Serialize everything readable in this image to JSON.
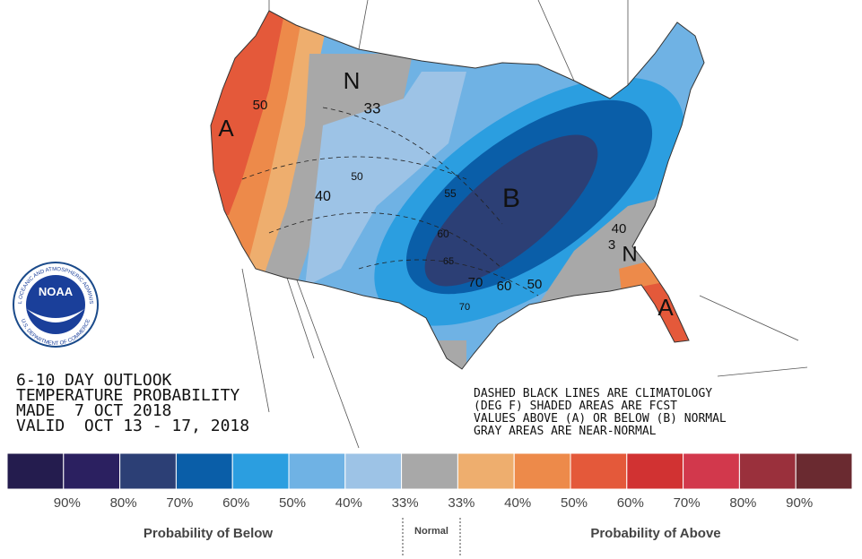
{
  "outlook": {
    "lines": [
      "6-10 DAY OUTLOOK",
      "TEMPERATURE PROBABILITY",
      "MADE  7 OCT 2018",
      "VALID  OCT 13 - 17, 2018"
    ]
  },
  "note": {
    "lines": [
      "DASHED BLACK LINES ARE CLIMATOLOGY",
      "(DEG F) SHADED AREAS ARE FCST",
      "VALUES ABOVE (A) OR BELOW (B) NORMAL",
      "GRAY AREAS ARE NEAR-NORMAL"
    ]
  },
  "logo": {
    "text": "NOAA",
    "ring_top": "NATIONAL OCEANIC AND ATMOSPHERIC ADMINISTRATION",
    "ring_bottom": "U.S. DEPARTMENT OF COMMERCE"
  },
  "map_labels": [
    "N",
    "33",
    "50",
    "A",
    "50",
    "40",
    "55",
    "B",
    "60",
    "65",
    "70",
    "60",
    "50",
    "70",
    "40",
    "3",
    "N",
    "A"
  ],
  "legend": {
    "colors": [
      "#241c4e",
      "#2b2060",
      "#2c3f75",
      "#0a5ea8",
      "#2b9ee0",
      "#6fb2e4",
      "#9dc3e6",
      "#a8a8a8",
      "#eeae6e",
      "#ed8a4a",
      "#e4593a",
      "#d13232",
      "#d2384c",
      "#9a303c",
      "#6a2a30"
    ],
    "ticks": [
      "90%",
      "80%",
      "70%",
      "60%",
      "50%",
      "40%",
      "33%",
      "33%",
      "40%",
      "50%",
      "60%",
      "70%",
      "80%",
      "90%"
    ],
    "below": "Probability of Below",
    "normal": "Normal",
    "above": "Probability of Above"
  }
}
